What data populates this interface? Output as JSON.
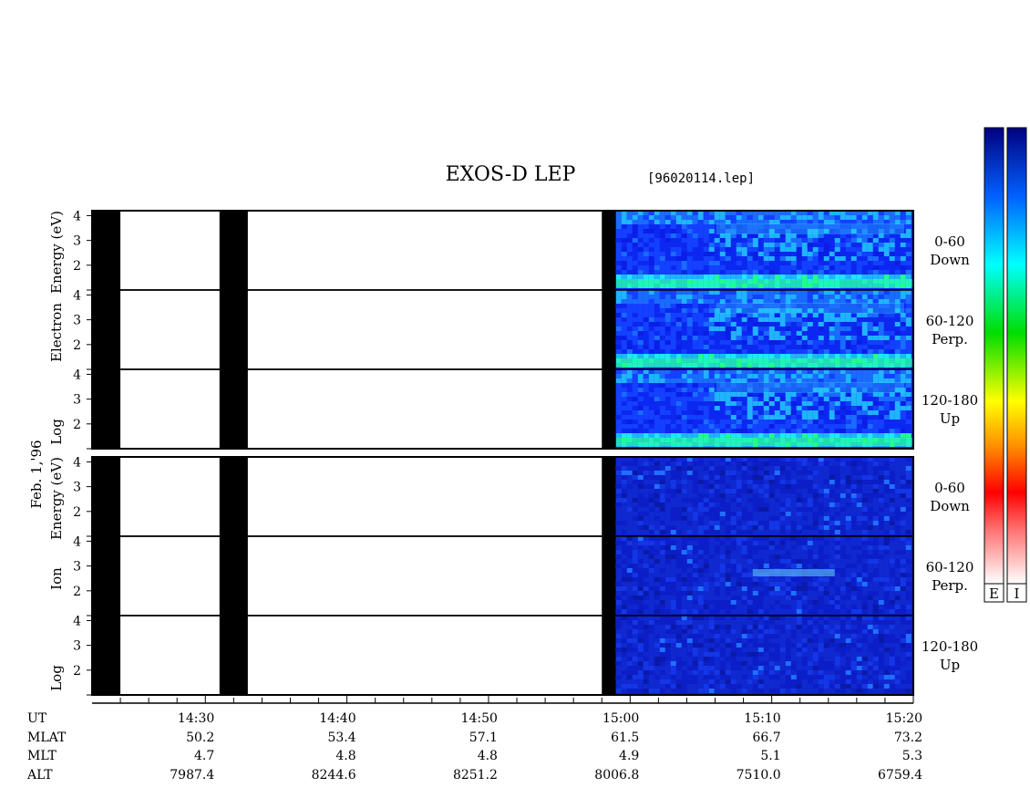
{
  "title": "EXOS-D LEP",
  "file_tag": "[96020114.lep]",
  "date_label": "Feb. 1,'96",
  "chart_data": {
    "type": "heatmap",
    "x_axis": {
      "ticks": [
        "14:30",
        "14:40",
        "14:50",
        "15:00",
        "15:10",
        "15:20"
      ],
      "minor_per_major": 5,
      "range": [
        "14:22",
        "15:20"
      ]
    },
    "y_axis": {
      "range": [
        1,
        4.2
      ],
      "ticks": [
        "4",
        "3",
        "2"
      ],
      "scale": "log energy (eV)"
    },
    "panels": [
      {
        "name": "Electron",
        "ylabel": "Log Electron Energy (eV)",
        "ylabel_words": [
          "Log",
          "Electron",
          "Energy (eV)"
        ],
        "subpanels": [
          {
            "angle": "0-60",
            "dir": "Down"
          },
          {
            "angle": "60-120",
            "dir": "Perp."
          },
          {
            "angle": "120-180",
            "dir": "Up"
          }
        ]
      },
      {
        "name": "Ion",
        "ylabel": "Log Ion Energy (eV)",
        "ylabel_words": [
          "Log",
          "Ion",
          "Energy (eV)"
        ],
        "subpanels": [
          {
            "angle": "0-60",
            "dir": "Down"
          },
          {
            "angle": "60-120",
            "dir": "Perp."
          },
          {
            "angle": "120-180",
            "dir": "Up"
          }
        ]
      }
    ],
    "no_data_intervals": [
      [
        "14:22",
        "14:24"
      ],
      [
        "14:31",
        "14:33"
      ],
      [
        "14:58",
        "14:59"
      ]
    ],
    "data_start": "14:59",
    "ephemeris": {
      "rows": [
        "UT",
        "MLAT",
        "MLT",
        "ALT"
      ],
      "times": [
        "14:30",
        "14:40",
        "14:50",
        "15:00",
        "15:10",
        "15:20"
      ],
      "MLAT": [
        "50.2",
        "53.4",
        "57.1",
        "61.5",
        "66.7",
        "73.2"
      ],
      "MLT": [
        "4.7",
        "4.8",
        "4.8",
        "4.9",
        "5.1",
        "5.3"
      ],
      "ALT": [
        "7987.4",
        "8244.6",
        "8251.2",
        "8006.8",
        "7510.0",
        "6759.4"
      ]
    },
    "colorbars": [
      {
        "label": "E"
      },
      {
        "label": "I"
      }
    ],
    "colormap": [
      "#ffffff",
      "#ff0000",
      "#ff8c00",
      "#ffff00",
      "#00ff00",
      "#00ffff",
      "#0055ff",
      "#00008b"
    ]
  }
}
